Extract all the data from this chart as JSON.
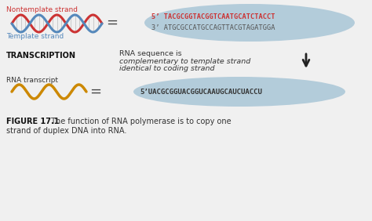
{
  "bg_color": "#f0f0f0",
  "nontemplate_label": "Nontemplate strand",
  "template_label": "Template strand",
  "transcription_label": "TRANSCRIPTION",
  "rna_transcript_label": "RNA transcript",
  "dna_seq_line1": "5’ TACGCGGTACGGTCAATGCATCTACCT",
  "dna_seq_line2": "3’ ATGCGCCATGCCAGTTACGTAGATGGA",
  "rna_seq": "5’UACGCGGUACGGUCAAUGCAUCUACCU",
  "rna_note_line1": "RNA sequence is",
  "rna_note_line2": "complementary to template strand",
  "rna_note_line3": "identical to coding strand",
  "figure_caption_bold": "FIGURE 17.1",
  "figure_caption_rest": " The function of RNA polymerase is to copy one",
  "figure_caption_line2": "strand of duplex DNA into RNA.",
  "nontemplate_color": "#cc3333",
  "template_color": "#5588bb",
  "rna_color": "#cc8800",
  "ellipse_color": "#adc8d8",
  "dna_seq1_color": "#cc3333",
  "dna_seq2_color": "#555555",
  "rna_seq_color": "#333333",
  "equals_color": "#444444",
  "arrow_color": "#222222",
  "label_color": "#333333"
}
